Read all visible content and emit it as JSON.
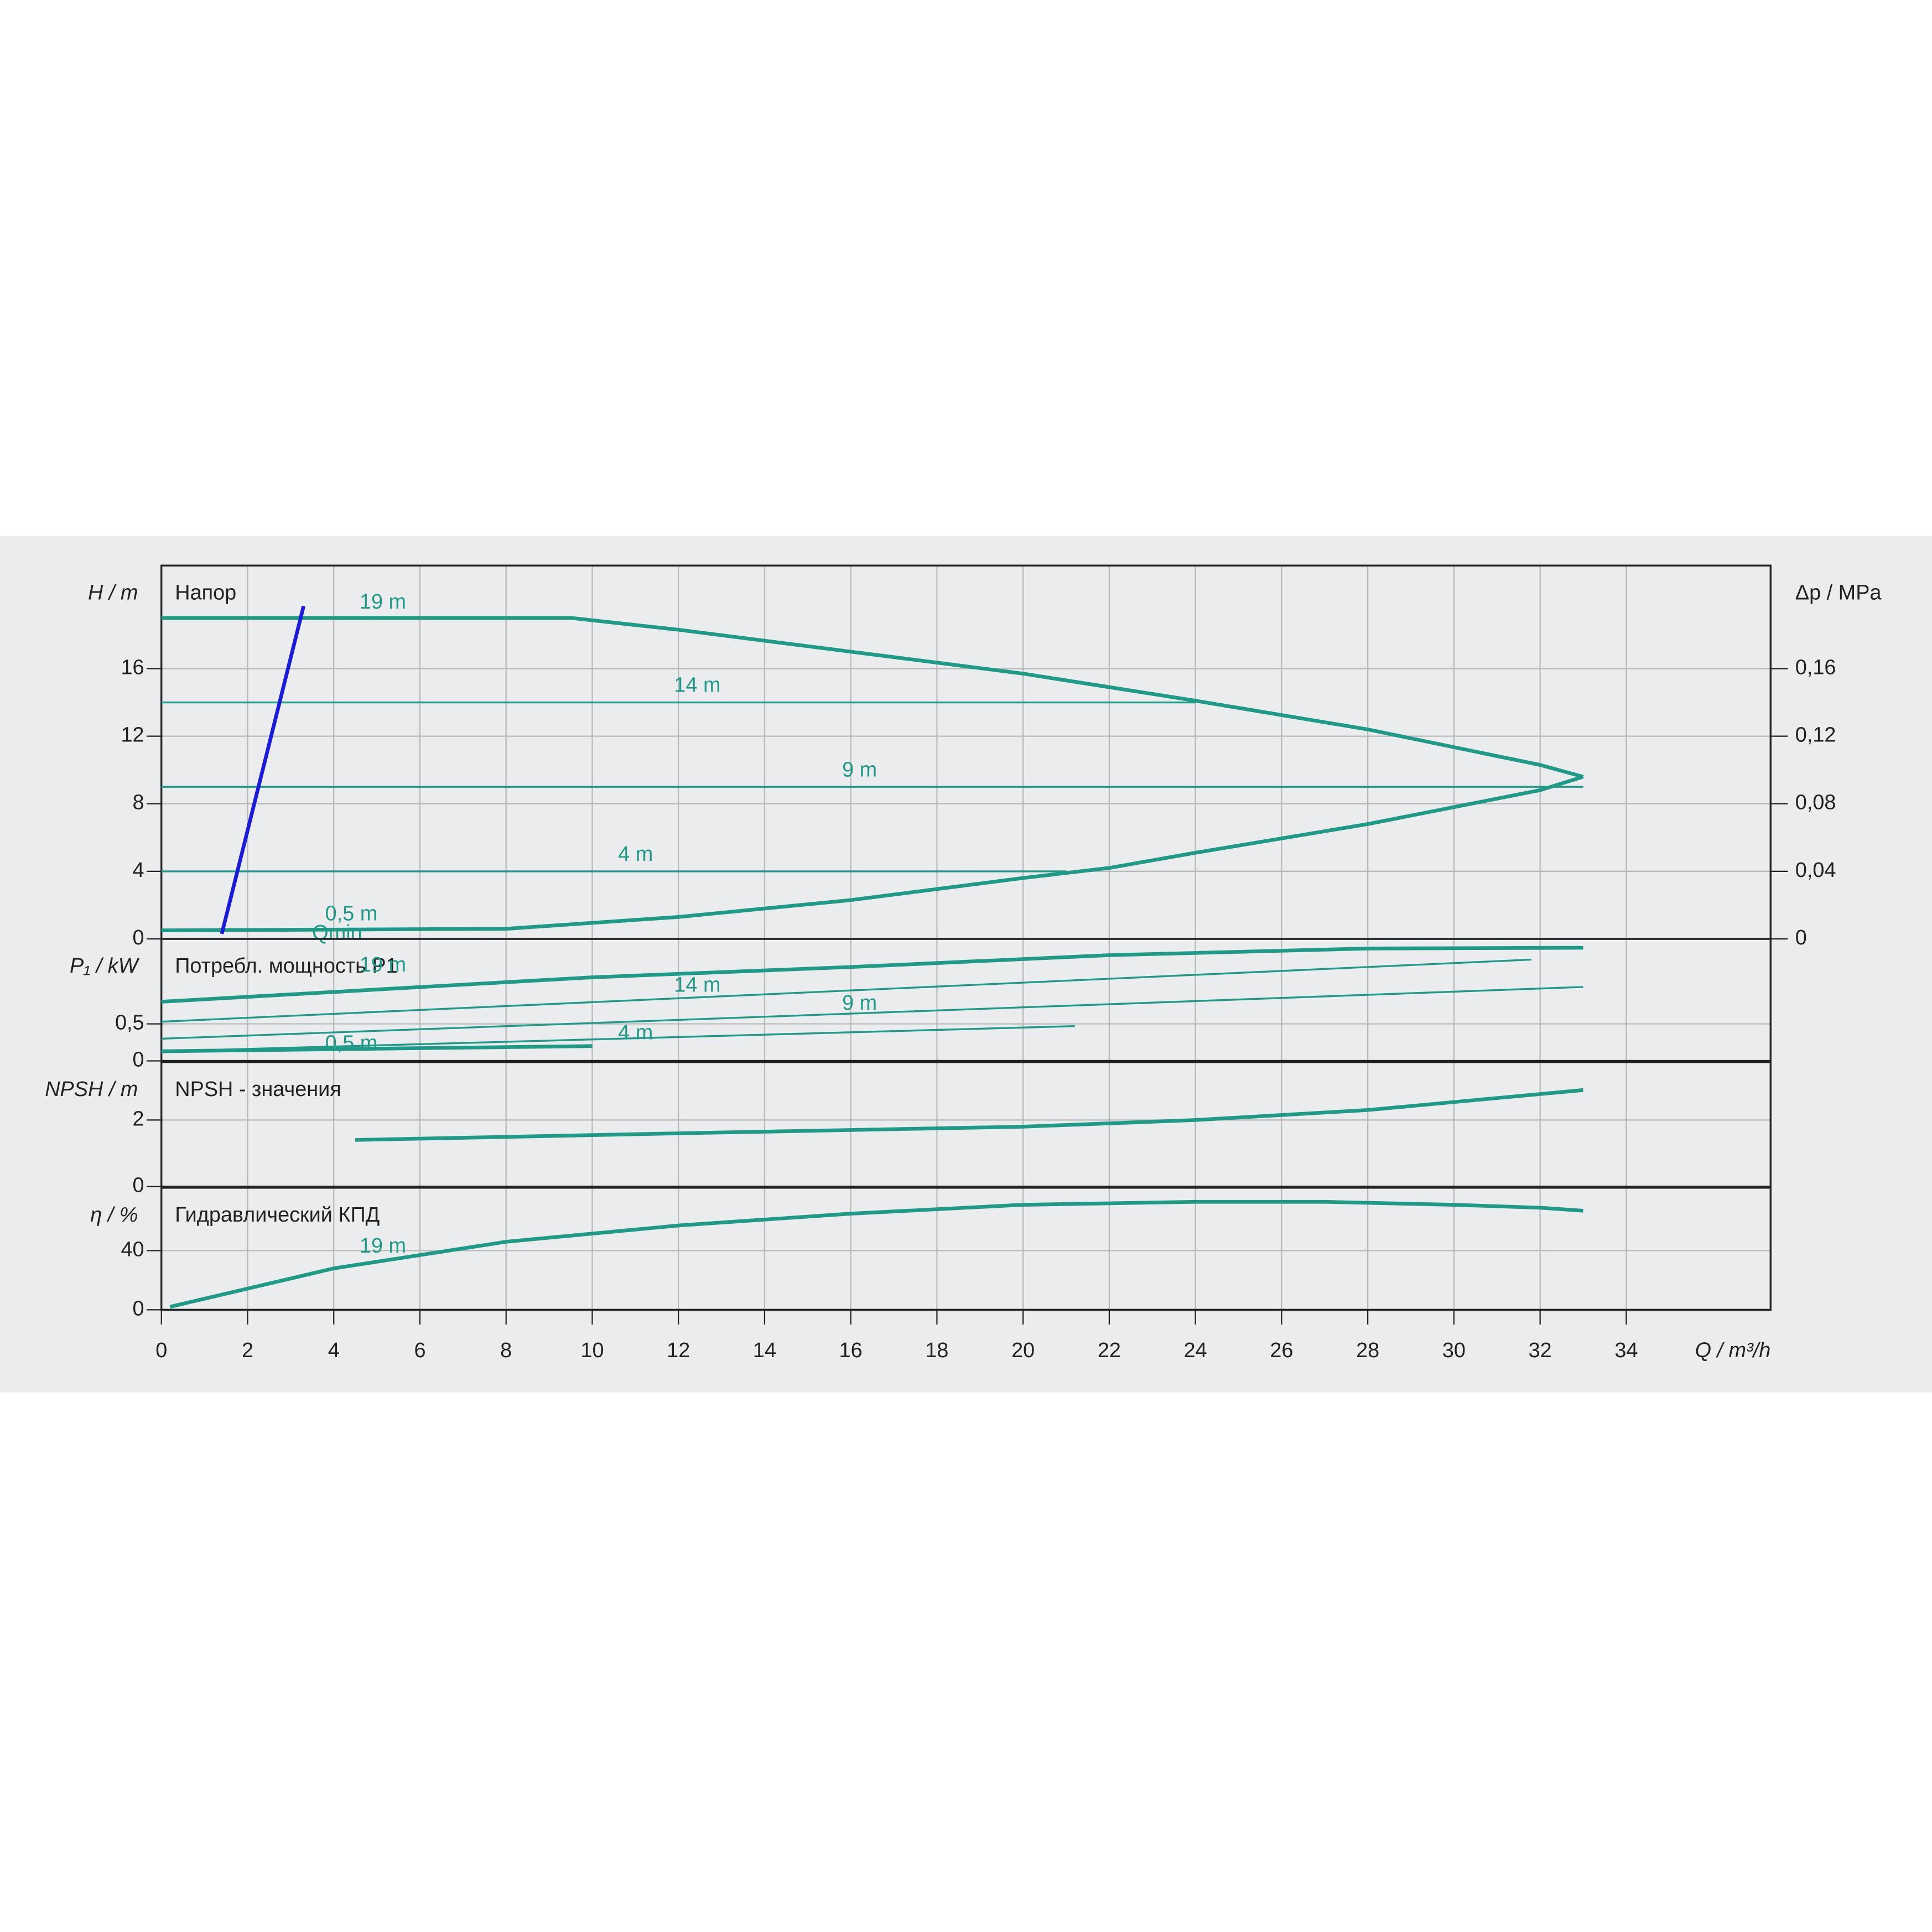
{
  "chart_data": [
    {
      "type": "line",
      "title": "Напор",
      "ylabel": "H / m",
      "y2label": "Δp / MPa",
      "ylim": [
        0,
        22.1
      ],
      "yticks": [
        0,
        4,
        8,
        12,
        16
      ],
      "y2lim": [
        0,
        0.221
      ],
      "y2ticks": [
        0,
        {
          "value": 0.04,
          "label": "0,04"
        },
        {
          "value": 0.08,
          "label": "0,08"
        },
        {
          "value": 0.12,
          "label": "0,12"
        },
        {
          "value": 0.16,
          "label": "0,16"
        }
      ],
      "grid": true,
      "series": [
        {
          "name": "19 m",
          "color": "#1f9a86",
          "linewidth": 3,
          "x": [
            0,
            9.5,
            12,
            16,
            20,
            24,
            28,
            32,
            33
          ],
          "values": [
            19,
            19,
            18.3,
            17,
            15.7,
            14.1,
            12.4,
            10.3,
            9.6
          ]
        },
        {
          "name": "14 m",
          "color": "#1f9a86",
          "linewidth": 1.5,
          "x": [
            0,
            24
          ],
          "values": [
            14,
            14
          ]
        },
        {
          "name": "9 m",
          "color": "#1f9a86",
          "linewidth": 1.5,
          "x": [
            0,
            33
          ],
          "values": [
            9,
            9
          ]
        },
        {
          "name": "4 m",
          "color": "#1f9a86",
          "linewidth": 1.5,
          "x": [
            0,
            21
          ],
          "values": [
            4,
            4
          ]
        },
        {
          "name": "0,5 m",
          "color": "#1f9a86",
          "linewidth": 3,
          "x": [
            0,
            8,
            12,
            16,
            20,
            22,
            24,
            28,
            32,
            33
          ],
          "values": [
            0.5,
            0.6,
            1.3,
            2.3,
            3.6,
            4.2,
            5.1,
            6.8,
            8.8,
            9.6
          ]
        },
        {
          "name": "Qmin",
          "color": "#1a1adb",
          "linewidth": 3,
          "x": [
            1.4,
            3.3
          ],
          "values": [
            0.3,
            19.7
          ]
        }
      ]
    },
    {
      "type": "line",
      "title": "Потребл. мощность P1",
      "ylabel": "P₁ / kW",
      "ylim": [
        0,
        1.65
      ],
      "yticks": [
        0,
        {
          "value": 0.5,
          "label": "0,5"
        }
      ],
      "grid": true,
      "series": [
        {
          "name": "19 m",
          "color": "#1f9a86",
          "linewidth": 3,
          "x": [
            0,
            10,
            16,
            22,
            28,
            33
          ],
          "values": [
            0.8,
            1.13,
            1.27,
            1.43,
            1.52,
            1.53
          ]
        },
        {
          "name": "14 m",
          "color": "#1f9a86",
          "linewidth": 1.5,
          "x": [
            0,
            31.8
          ],
          "values": [
            0.53,
            1.37
          ]
        },
        {
          "name": "9 m",
          "color": "#1f9a86",
          "linewidth": 1.5,
          "x": [
            0,
            33
          ],
          "values": [
            0.3,
            1.0
          ]
        },
        {
          "name": "4 m",
          "color": "#1f9a86",
          "linewidth": 1.5,
          "x": [
            0,
            21.2
          ],
          "values": [
            0.13,
            0.47
          ]
        },
        {
          "name": "0,5 m",
          "color": "#1f9a86",
          "linewidth": 3,
          "x": [
            0,
            10
          ],
          "values": [
            0.13,
            0.2
          ]
        }
      ]
    },
    {
      "type": "line",
      "title": "NPSH - значения",
      "ylabel": "NPSH / m",
      "ylim": [
        0,
        3.74
      ],
      "yticks": [
        0,
        2
      ],
      "grid": true,
      "series": [
        {
          "name": "19 m",
          "color": "#1f9a86",
          "linewidth": 3,
          "x": [
            4.5,
            12,
            20,
            24,
            28,
            33
          ],
          "values": [
            1.4,
            1.6,
            1.8,
            2.0,
            2.3,
            2.9
          ]
        }
      ]
    },
    {
      "type": "line",
      "title": "Гидравлический КПД",
      "ylabel": "η / %",
      "ylim": [
        0,
        82.5
      ],
      "yticks": [
        0,
        40
      ],
      "grid": true,
      "xlim": [
        0,
        37.35
      ],
      "xticks": [
        0,
        2,
        4,
        6,
        8,
        10,
        12,
        14,
        16,
        18,
        20,
        22,
        24,
        26,
        28,
        30,
        32,
        34
      ],
      "xlabel": "Q / m³/h",
      "series": [
        {
          "name": "19 m",
          "color": "#1f9a86",
          "linewidth": 3,
          "x": [
            0.2,
            4,
            8,
            12,
            16,
            20,
            24,
            27,
            30,
            32,
            33
          ],
          "values": [
            2,
            28,
            46,
            57,
            65,
            71,
            73,
            73,
            71,
            69,
            67
          ]
        }
      ]
    }
  ]
}
